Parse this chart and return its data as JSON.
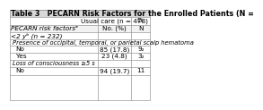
{
  "title": "Table 3   PECARN Risk Factors for the Enrolled Patients (N =",
  "col1_header": "Usual care (n = 478)",
  "col2_header": "D-",
  "col1_subheader": "No. (%)",
  "col2_subheader": "N",
  "row_label_header": "PECARN risk factorsᵃ",
  "age_group": "<2 yᵇ (n = 232)",
  "section1": "Presence of occipital, temporal, or parietal scalp hematoma",
  "rows": [
    {
      "label": "No",
      "v1": "85 (17.8)",
      "v2": "9₂"
    },
    {
      "label": "Yes",
      "v1": "23 (4.8)",
      "v2": "3₂"
    }
  ],
  "section2": "Loss of consciousness ≥5 s",
  "rows2": [
    {
      "label": "No",
      "v1": "94 (19.7)",
      "v2": "11"
    }
  ],
  "bg_title": "#d8d8d8",
  "bg_white": "#ffffff",
  "bg_subhdr": "#f2f2f2",
  "border": "#999999",
  "font": 5.2,
  "title_font": 5.8
}
